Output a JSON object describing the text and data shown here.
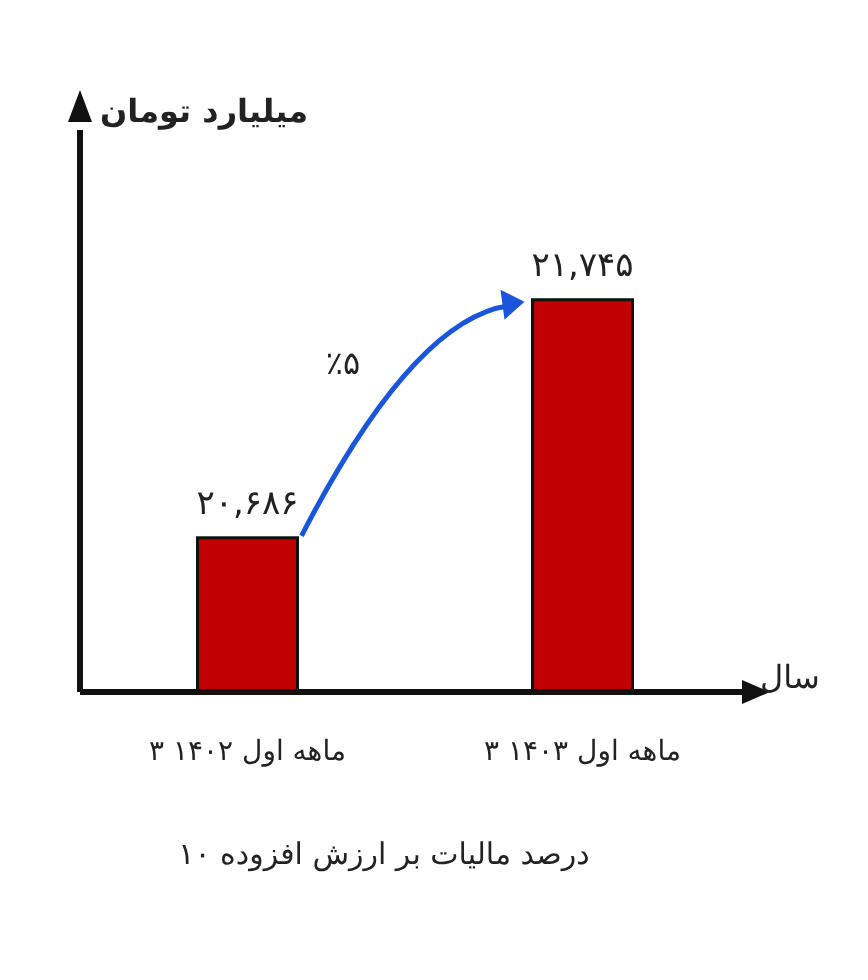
{
  "chart_data": {
    "type": "bar",
    "title": "۱۰ درصد مالیات بر ارزش افزوده",
    "xlabel": "سال",
    "ylabel": "میلیارد تومان",
    "categories": [
      "۳ ماهه اول ۱۴۰۲",
      "۳ ماهه اول ۱۴۰۳"
    ],
    "values": [
      20686,
      21745
    ],
    "value_labels": [
      "۲۰,۶۸۶",
      "۲۱,۷۴۵"
    ],
    "color": "#c00000",
    "ylim": [
      20000,
      22500
    ],
    "tick_labels": "x",
    "annotations": [
      "٪۵"
    ]
  }
}
